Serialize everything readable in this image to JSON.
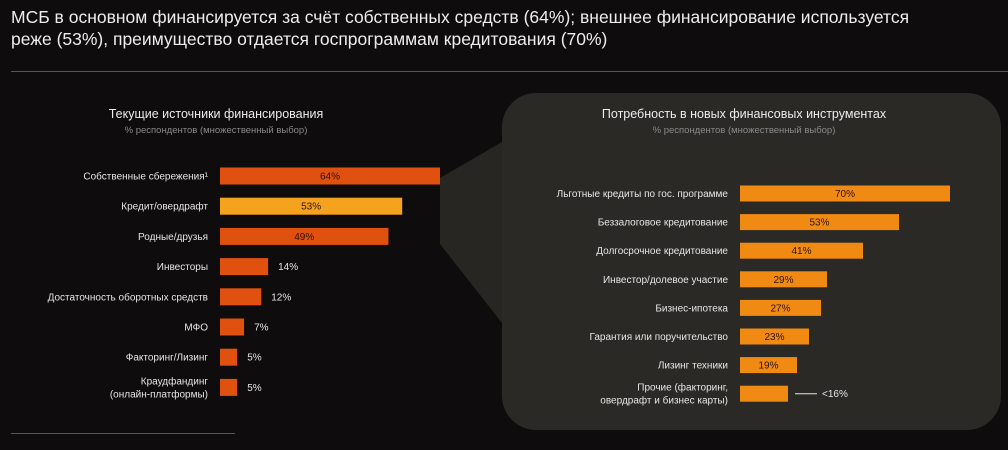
{
  "headline": {
    "line1": "МСБ в основном финансируется за счёт собственных средств (64%); внешнее финансирование используется",
    "line2": "реже (53%), преимущество отдается госпрограммам кредитования (70%)"
  },
  "colors": {
    "background": "#0e0c0c",
    "rule": "#c8262b",
    "bar_dark_orange": "#e0500e",
    "bar_highlight": "#f5a21e",
    "bar_orange": "#f08a12",
    "callout_panel": "#2a2926"
  },
  "chart_data": [
    {
      "type": "bar",
      "orientation": "horizontal",
      "title": "Текущие источники финансирования",
      "subtitle": "% респондентов (множественный выбор)",
      "categories": [
        [
          "Собственные сбережения¹"
        ],
        [
          "Кредит/овердрафт"
        ],
        [
          "Родные/друзья"
        ],
        [
          "Инвесторы"
        ],
        [
          "Достаточность оборотных средств"
        ],
        [
          "МФО"
        ],
        [
          "Факторинг/Лизинг"
        ],
        [
          "Краудфандинг",
          "(онлайн-платформы)"
        ]
      ],
      "values": [
        64,
        53,
        49,
        14,
        12,
        7,
        5,
        5
      ],
      "value_labels": [
        "64%",
        "53%",
        "49%",
        "14%",
        "12%",
        "7%",
        "5%",
        "5%"
      ],
      "highlight_index": 1,
      "xlim": [
        0,
        64
      ]
    },
    {
      "type": "bar",
      "orientation": "horizontal",
      "title": "Потребность в новых финансовых инструментах",
      "subtitle": "% респондентов (множественный выбор)",
      "categories": [
        [
          "Льготные кредиты по гос. программе"
        ],
        [
          "Беззалоговое кредитование"
        ],
        [
          "Долгосрочное кредитование"
        ],
        [
          "Инвестор/долевое участие"
        ],
        [
          "Бизнес-ипотека"
        ],
        [
          "Гарантия или поручительство"
        ],
        [
          "Лизинг техники"
        ],
        [
          "Прочие (факторинг,",
          "овердрафт и бизнес карты)"
        ]
      ],
      "values": [
        70,
        53,
        41,
        29,
        27,
        23,
        19,
        16
      ],
      "value_labels": [
        "70%",
        "53%",
        "41%",
        "29%",
        "27%",
        "23%",
        "19%",
        "<16%"
      ],
      "xlim": [
        0,
        70
      ]
    }
  ]
}
